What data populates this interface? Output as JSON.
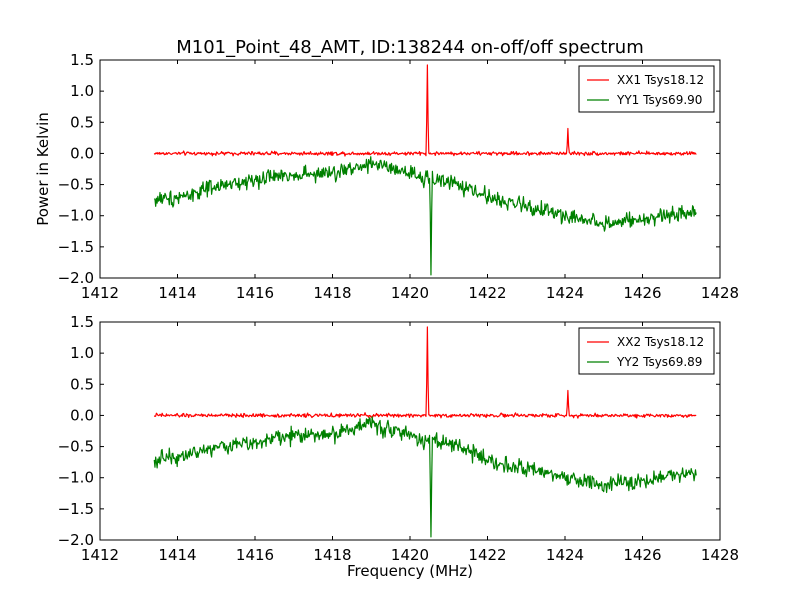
{
  "figure_title": "M101_Point_48_AMT, ID:138244 on-off/off spectrum",
  "chart_data": [
    {
      "type": "line",
      "title": "M101_Point_48_AMT, ID:138244 on-off/off spectrum",
      "xlabel": "",
      "ylabel": "Power in Kelvin",
      "xlim": [
        1412,
        1428
      ],
      "ylim": [
        -2.0,
        1.5
      ],
      "xticks": [
        "1412",
        "1414",
        "1416",
        "1418",
        "1420",
        "1422",
        "1424",
        "1426",
        "1428"
      ],
      "yticks": [
        "1.5",
        "1.0",
        "0.5",
        "0.0",
        "−0.5",
        "−1.0",
        "−1.5",
        "−2.0"
      ],
      "grid": false,
      "legend_position": "top-right",
      "x_range_data": [
        1413.4,
        1427.4
      ],
      "series": [
        {
          "name": "XX1 Tsys18.12",
          "color": "#ff0000",
          "baseline": 0.0,
          "noise": 0.03,
          "features": [
            {
              "x": 1420.45,
              "y": 1.42
            },
            {
              "x": 1424.08,
              "y": 0.4
            }
          ]
        },
        {
          "name": "YY1 Tsys69.90",
          "color": "#008000",
          "noise": 0.13,
          "trend": [
            {
              "x": 1413.4,
              "y": -0.75
            },
            {
              "x": 1414.0,
              "y": -0.7
            },
            {
              "x": 1415.0,
              "y": -0.55
            },
            {
              "x": 1416.0,
              "y": -0.42
            },
            {
              "x": 1417.0,
              "y": -0.33
            },
            {
              "x": 1418.0,
              "y": -0.33
            },
            {
              "x": 1419.0,
              "y": -0.15
            },
            {
              "x": 1420.0,
              "y": -0.35
            },
            {
              "x": 1421.0,
              "y": -0.45
            },
            {
              "x": 1422.0,
              "y": -0.7
            },
            {
              "x": 1423.0,
              "y": -0.85
            },
            {
              "x": 1424.0,
              "y": -1.0
            },
            {
              "x": 1425.0,
              "y": -1.12
            },
            {
              "x": 1426.0,
              "y": -1.08
            },
            {
              "x": 1427.4,
              "y": -0.9
            }
          ],
          "features": [
            {
              "x": 1420.55,
              "y": -1.95
            },
            {
              "x": 1420.35,
              "y": -0.55
            }
          ]
        }
      ]
    },
    {
      "type": "line",
      "title": "",
      "xlabel": "Frequency (MHz)",
      "ylabel": "",
      "xlim": [
        1412,
        1428
      ],
      "ylim": [
        -2.0,
        1.5
      ],
      "xticks": [
        "1412",
        "1414",
        "1416",
        "1418",
        "1420",
        "1422",
        "1424",
        "1426",
        "1428"
      ],
      "yticks": [
        "1.5",
        "1.0",
        "0.5",
        "0.0",
        "−0.5",
        "−1.0",
        "−1.5",
        "−2.0"
      ],
      "grid": false,
      "legend_position": "top-right",
      "x_range_data": [
        1413.4,
        1427.4
      ],
      "series": [
        {
          "name": "XX2 Tsys18.12",
          "color": "#ff0000",
          "baseline": 0.0,
          "noise": 0.03,
          "features": [
            {
              "x": 1420.45,
              "y": 1.42
            },
            {
              "x": 1424.08,
              "y": 0.4
            }
          ]
        },
        {
          "name": "YY2 Tsys69.89",
          "color": "#008000",
          "noise": 0.13,
          "trend": [
            {
              "x": 1413.4,
              "y": -0.72
            },
            {
              "x": 1414.0,
              "y": -0.65
            },
            {
              "x": 1415.0,
              "y": -0.52
            },
            {
              "x": 1416.0,
              "y": -0.42
            },
            {
              "x": 1417.0,
              "y": -0.32
            },
            {
              "x": 1418.0,
              "y": -0.3
            },
            {
              "x": 1419.0,
              "y": -0.12
            },
            {
              "x": 1420.0,
              "y": -0.32
            },
            {
              "x": 1421.0,
              "y": -0.45
            },
            {
              "x": 1422.0,
              "y": -0.7
            },
            {
              "x": 1423.0,
              "y": -0.88
            },
            {
              "x": 1424.0,
              "y": -1.0
            },
            {
              "x": 1425.0,
              "y": -1.12
            },
            {
              "x": 1426.0,
              "y": -1.05
            },
            {
              "x": 1427.4,
              "y": -0.9
            }
          ],
          "features": [
            {
              "x": 1420.55,
              "y": -1.95
            },
            {
              "x": 1420.35,
              "y": -0.55
            }
          ]
        }
      ]
    }
  ]
}
